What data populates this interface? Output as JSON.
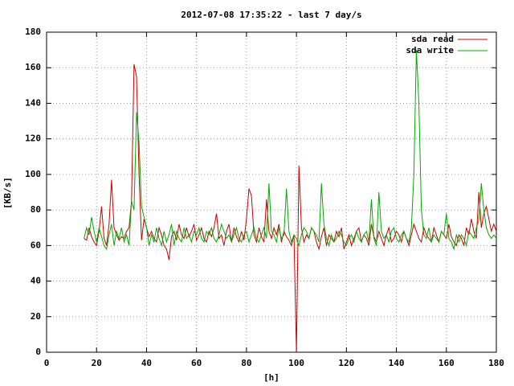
{
  "chart_data": {
    "type": "line",
    "title": "2012-07-08 17:35:22 - last 7 day/s",
    "x_label": "[h]",
    "y_label": "[KB/s]",
    "x": [
      15,
      16,
      17,
      18,
      19,
      20,
      21,
      22,
      23,
      24,
      25,
      26,
      27,
      28,
      29,
      30,
      31,
      32,
      33,
      34,
      35,
      36,
      37,
      38,
      39,
      40,
      41,
      42,
      43,
      44,
      45,
      46,
      47,
      48,
      49,
      50,
      51,
      52,
      53,
      54,
      55,
      56,
      57,
      58,
      59,
      60,
      61,
      62,
      63,
      64,
      65,
      66,
      67,
      68,
      69,
      70,
      71,
      72,
      73,
      74,
      75,
      76,
      77,
      78,
      79,
      80,
      81,
      82,
      83,
      84,
      85,
      86,
      87,
      88,
      89,
      90,
      91,
      92,
      93,
      94,
      95,
      96,
      97,
      98,
      99,
      100,
      101,
      102,
      103,
      104,
      105,
      106,
      107,
      108,
      109,
      110,
      111,
      112,
      113,
      114,
      115,
      116,
      117,
      118,
      119,
      120,
      121,
      122,
      123,
      124,
      125,
      126,
      127,
      128,
      129,
      130,
      131,
      132,
      133,
      134,
      135,
      136,
      137,
      138,
      139,
      140,
      141,
      142,
      143,
      144,
      145,
      146,
      147,
      148,
      149,
      150,
      151,
      152,
      153,
      154,
      155,
      156,
      157,
      158,
      159,
      160,
      161,
      162,
      163,
      164,
      165,
      166,
      167,
      168,
      169,
      170,
      171,
      172,
      173,
      174,
      175,
      176,
      177,
      178,
      179,
      180
    ],
    "series": [
      {
        "name": "sda read",
        "color": "#cc0000",
        "values": [
          64,
          63,
          70,
          65,
          62,
          60,
          68,
          82,
          64,
          60,
          72,
          97,
          70,
          66,
          63,
          65,
          64,
          68,
          70,
          85,
          162,
          155,
          100,
          63,
          75,
          70,
          65,
          68,
          64,
          62,
          70,
          66,
          60,
          58,
          52,
          65,
          68,
          63,
          72,
          66,
          64,
          70,
          65,
          68,
          72,
          63,
          66,
          70,
          64,
          62,
          68,
          65,
          70,
          78,
          64,
          66,
          60,
          68,
          72,
          62,
          70,
          65,
          62,
          68,
          63,
          75,
          92,
          88,
          66,
          62,
          70,
          65,
          62,
          86,
          68,
          64,
          70,
          66,
          72,
          62,
          68,
          65,
          63,
          60,
          66,
          0,
          105,
          70,
          62,
          66,
          64,
          70,
          68,
          62,
          58,
          65,
          70,
          60,
          66,
          64,
          62,
          68,
          65,
          70,
          58,
          62,
          66,
          60,
          64,
          68,
          70,
          62,
          66,
          64,
          60,
          72,
          65,
          62,
          68,
          64,
          60,
          66,
          70,
          62,
          64,
          68,
          66,
          62,
          68,
          64,
          60,
          66,
          72,
          68,
          64,
          62,
          70,
          66,
          64,
          62,
          70,
          66,
          62,
          68,
          66,
          64,
          72,
          65,
          62,
          60,
          66,
          64,
          60,
          70,
          66,
          75,
          68,
          64,
          90,
          70,
          78,
          82,
          75,
          68,
          72,
          68
        ]
      },
      {
        "name": "sda write",
        "color": "#00aa00",
        "values": [
          64,
          70,
          66,
          76,
          68,
          62,
          70,
          65,
          60,
          58,
          66,
          72,
          60,
          68,
          64,
          70,
          62,
          66,
          60,
          85,
          80,
          135,
          118,
          82,
          76,
          70,
          60,
          66,
          62,
          70,
          64,
          60,
          68,
          62,
          66,
          72,
          60,
          68,
          64,
          62,
          70,
          64,
          66,
          62,
          68,
          66,
          70,
          64,
          62,
          68,
          66,
          70,
          64,
          62,
          66,
          72,
          68,
          64,
          66,
          62,
          66,
          70,
          64,
          62,
          66,
          68,
          62,
          66,
          70,
          64,
          62,
          66,
          70,
          64,
          95,
          68,
          66,
          62,
          70,
          64,
          66,
          92,
          68,
          62,
          66,
          64,
          60,
          66,
          70,
          68,
          64,
          70,
          68,
          66,
          62,
          95,
          72,
          64,
          60,
          66,
          62,
          64,
          68,
          66,
          62,
          60,
          64,
          66,
          62,
          68,
          64,
          62,
          66,
          68,
          62,
          86,
          64,
          60,
          90,
          68,
          64,
          66,
          62,
          68,
          70,
          64,
          62,
          66,
          68,
          64,
          62,
          70,
          100,
          170,
          140,
          80,
          66,
          64,
          70,
          62,
          66,
          64,
          62,
          68,
          66,
          78,
          64,
          62,
          58,
          66,
          62,
          66,
          64,
          60,
          68,
          66,
          64,
          70,
          74,
          95,
          80,
          70,
          66,
          64,
          66,
          64
        ]
      }
    ],
    "xlim": [
      0,
      180
    ],
    "ylim": [
      0,
      180
    ],
    "xticks": [
      0,
      20,
      40,
      60,
      80,
      100,
      120,
      140,
      160,
      180
    ],
    "yticks": [
      0,
      20,
      40,
      60,
      80,
      100,
      120,
      140,
      160,
      180
    ],
    "grid": true,
    "legend": "upper right"
  }
}
